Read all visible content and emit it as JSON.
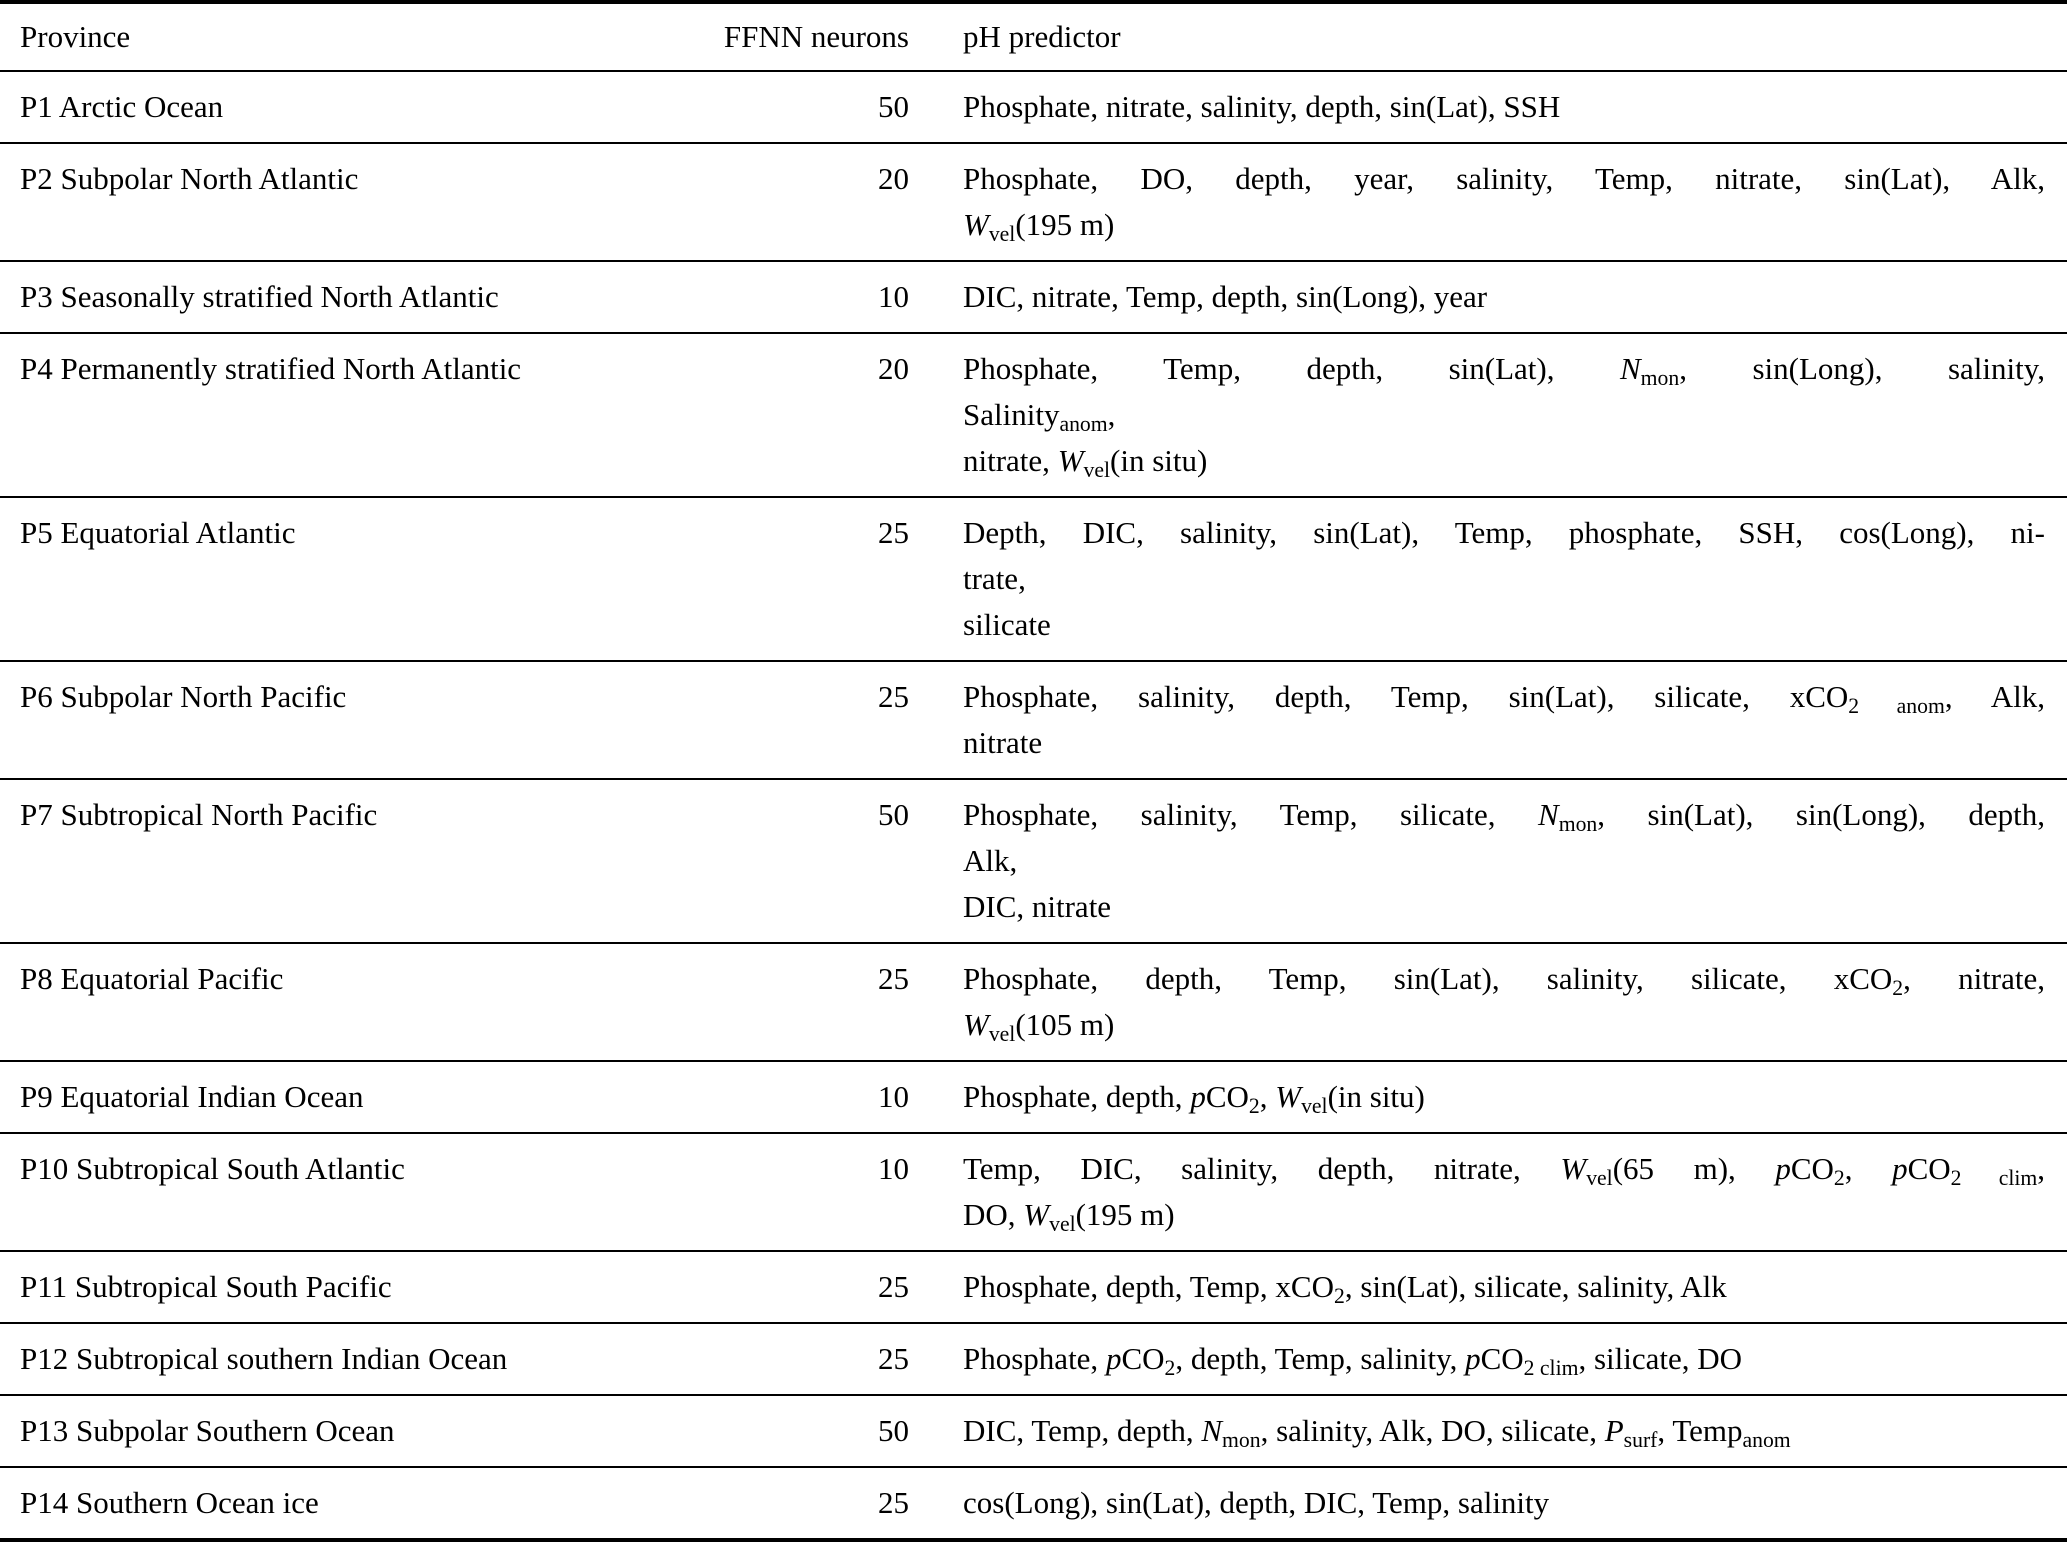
{
  "table": {
    "headers": {
      "province": "Province",
      "neurons": "FFNN neurons",
      "predictor": "pH predictor"
    },
    "rows": [
      {
        "province": "P1 Arctic Ocean",
        "neurons": "50",
        "predictor": "Phosphate, nitrate, salinity, depth, sin(Lat), SSH"
      },
      {
        "province": "P2 Subpolar North Atlantic",
        "neurons": "20",
        "predictor": "Phosphate, DO, depth, year, salinity, Temp, nitrate, sin(Lat), Alk,\n*W*~vel~(195 m)"
      },
      {
        "province": "P3 Seasonally stratified North Atlantic",
        "neurons": "10",
        "predictor": "DIC, nitrate, Temp, depth, sin(Long), year"
      },
      {
        "province": "P4 Permanently stratified North Atlantic",
        "neurons": "20",
        "predictor": "Phosphate, Temp, depth, sin(Lat), *N*~mon~, sin(Long), salinity,\nSalinity~anom~,\nnitrate, *W*~vel~(in situ)"
      },
      {
        "province": "P5 Equatorial Atlantic",
        "neurons": "25",
        "predictor": "Depth, DIC, salinity, sin(Lat), Temp, phosphate, SSH, cos(Long), ni-\ntrate,\nsilicate"
      },
      {
        "province": "P6 Subpolar North Pacific",
        "neurons": "25",
        "predictor": "Phosphate, salinity, depth, Temp, sin(Lat), silicate, xCO~2 anom~, Alk,\nnitrate"
      },
      {
        "province": "P7 Subtropical North Pacific",
        "neurons": "50",
        "predictor": "Phosphate, salinity, Temp, silicate, *N*~mon~, sin(Lat), sin(Long), depth,\nAlk,\nDIC, nitrate"
      },
      {
        "province": "P8 Equatorial Pacific",
        "neurons": "25",
        "predictor": "Phosphate, depth, Temp, sin(Lat), salinity, silicate, xCO~2~, nitrate,\n*W*~vel~(105 m)"
      },
      {
        "province": "P9 Equatorial Indian Ocean",
        "neurons": "10",
        "predictor": "Phosphate, depth, *p*CO~2~, *W*~vel~(in situ)"
      },
      {
        "province": "P10 Subtropical South Atlantic",
        "neurons": "10",
        "predictor": "Temp, DIC, salinity, depth, nitrate, *W*~vel~(65 m), *p*CO~2~, *p*CO~2 clim~,\nDO, *W*~vel~(195 m)"
      },
      {
        "province": "P11 Subtropical South Pacific",
        "neurons": "25",
        "predictor": "Phosphate, depth, Temp, xCO~2~, sin(Lat), silicate, salinity, Alk"
      },
      {
        "province": "P12 Subtropical southern Indian Ocean",
        "neurons": "25",
        "predictor": "Phosphate, *p*CO~2~, depth, Temp, salinity, *p*CO~2 clim~, silicate, DO"
      },
      {
        "province": "P13 Subpolar Southern Ocean",
        "neurons": "50",
        "predictor": "DIC, Temp, depth, *N*~mon~, salinity, Alk, DO, silicate, *P*~surf~, Temp~anom~"
      },
      {
        "province": "P14 Southern Ocean ice",
        "neurons": "25",
        "predictor": "cos(Long), sin(Lat), depth, DIC, Temp, salinity"
      }
    ]
  }
}
